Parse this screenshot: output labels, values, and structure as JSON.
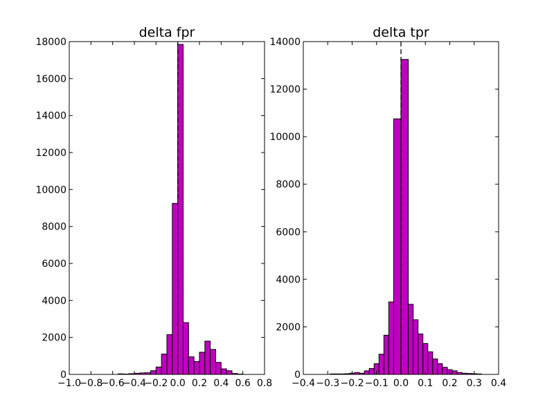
{
  "figure": {
    "background": "#ffffff"
  },
  "chart_data": [
    {
      "type": "bar",
      "title": "delta fpr",
      "xlabel": "",
      "ylabel": "",
      "xlim": [
        -1.0,
        0.8
      ],
      "ylim": [
        0,
        18000
      ],
      "xticks": [
        -1.0,
        -0.8,
        -0.6,
        -0.4,
        -0.2,
        0.0,
        0.2,
        0.4,
        0.6,
        0.8
      ],
      "xtick_labels": [
        "−1.0",
        "−0.8",
        "−0.6",
        "−0.4",
        "−0.2",
        "0.0",
        "0.2",
        "0.4",
        "0.6",
        "0.8"
      ],
      "yticks": [
        0,
        2000,
        4000,
        6000,
        8000,
        10000,
        12000,
        14000,
        16000,
        18000
      ],
      "ytick_labels": [
        "0",
        "2000",
        "4000",
        "6000",
        "8000",
        "10000",
        "12000",
        "14000",
        "16000",
        "18000"
      ],
      "vline": 0.0,
      "bar_color": "#bf00bf",
      "edge_color": "#000000",
      "bins": [
        {
          "x0": -0.55,
          "x1": -0.5,
          "count": 30
        },
        {
          "x0": -0.5,
          "x1": -0.45,
          "count": 20
        },
        {
          "x0": -0.45,
          "x1": -0.4,
          "count": 40
        },
        {
          "x0": -0.4,
          "x1": -0.35,
          "count": 60
        },
        {
          "x0": -0.35,
          "x1": -0.3,
          "count": 80
        },
        {
          "x0": -0.3,
          "x1": -0.25,
          "count": 90
        },
        {
          "x0": -0.25,
          "x1": -0.2,
          "count": 200
        },
        {
          "x0": -0.2,
          "x1": -0.15,
          "count": 400
        },
        {
          "x0": -0.15,
          "x1": -0.1,
          "count": 1100
        },
        {
          "x0": -0.1,
          "x1": -0.05,
          "count": 2150
        },
        {
          "x0": -0.05,
          "x1": 0.0,
          "count": 9250
        },
        {
          "x0": 0.0,
          "x1": 0.05,
          "count": 17850
        },
        {
          "x0": 0.05,
          "x1": 0.1,
          "count": 2800
        },
        {
          "x0": 0.1,
          "x1": 0.15,
          "count": 950
        },
        {
          "x0": 0.15,
          "x1": 0.2,
          "count": 700
        },
        {
          "x0": 0.2,
          "x1": 0.25,
          "count": 1200
        },
        {
          "x0": 0.25,
          "x1": 0.3,
          "count": 1800
        },
        {
          "x0": 0.3,
          "x1": 0.35,
          "count": 1350
        },
        {
          "x0": 0.35,
          "x1": 0.4,
          "count": 650
        },
        {
          "x0": 0.4,
          "x1": 0.45,
          "count": 300
        },
        {
          "x0": 0.45,
          "x1": 0.5,
          "count": 200
        },
        {
          "x0": 0.5,
          "x1": 0.55,
          "count": 50
        },
        {
          "x0": 0.55,
          "x1": 0.6,
          "count": 20
        }
      ]
    },
    {
      "type": "bar",
      "title": "delta tpr",
      "xlabel": "",
      "ylabel": "",
      "xlim": [
        -0.4,
        0.4
      ],
      "ylim": [
        0,
        14000
      ],
      "xticks": [
        -0.4,
        -0.3,
        -0.2,
        -0.1,
        0.0,
        0.1,
        0.2,
        0.3,
        0.4
      ],
      "xtick_labels": [
        "−0.4",
        "−0.3",
        "−0.2",
        "−0.1",
        "0.0",
        "0.1",
        "0.2",
        "0.3",
        "0.4"
      ],
      "yticks": [
        0,
        2000,
        4000,
        6000,
        8000,
        10000,
        12000,
        14000
      ],
      "ytick_labels": [
        "0",
        "2000",
        "4000",
        "6000",
        "8000",
        "10000",
        "12000",
        "14000"
      ],
      "vline": 0.0,
      "bar_color": "#bf00bf",
      "edge_color": "#000000",
      "bins": [
        {
          "x0": -0.29,
          "x1": -0.27,
          "count": 20
        },
        {
          "x0": -0.27,
          "x1": -0.25,
          "count": 20
        },
        {
          "x0": -0.25,
          "x1": -0.23,
          "count": 20
        },
        {
          "x0": -0.23,
          "x1": -0.21,
          "count": 30
        },
        {
          "x0": -0.21,
          "x1": -0.19,
          "count": 50
        },
        {
          "x0": -0.19,
          "x1": -0.17,
          "count": 80
        },
        {
          "x0": -0.17,
          "x1": -0.15,
          "count": 50
        },
        {
          "x0": -0.15,
          "x1": -0.13,
          "count": 150
        },
        {
          "x0": -0.13,
          "x1": -0.11,
          "count": 250
        },
        {
          "x0": -0.11,
          "x1": -0.09,
          "count": 450
        },
        {
          "x0": -0.09,
          "x1": -0.07,
          "count": 850
        },
        {
          "x0": -0.07,
          "x1": -0.05,
          "count": 1650
        },
        {
          "x0": -0.05,
          "x1": -0.03,
          "count": 3050
        },
        {
          "x0": -0.03,
          "x1": 0.0,
          "count": 10750
        },
        {
          "x0": 0.0,
          "x1": 0.03,
          "count": 13250
        },
        {
          "x0": 0.03,
          "x1": 0.05,
          "count": 2950
        },
        {
          "x0": 0.05,
          "x1": 0.07,
          "count": 2300
        },
        {
          "x0": 0.07,
          "x1": 0.09,
          "count": 1700
        },
        {
          "x0": 0.09,
          "x1": 0.11,
          "count": 1300
        },
        {
          "x0": 0.11,
          "x1": 0.13,
          "count": 950
        },
        {
          "x0": 0.13,
          "x1": 0.15,
          "count": 650
        },
        {
          "x0": 0.15,
          "x1": 0.17,
          "count": 450
        },
        {
          "x0": 0.17,
          "x1": 0.19,
          "count": 300
        },
        {
          "x0": 0.19,
          "x1": 0.21,
          "count": 200
        },
        {
          "x0": 0.21,
          "x1": 0.23,
          "count": 150
        },
        {
          "x0": 0.23,
          "x1": 0.25,
          "count": 80
        },
        {
          "x0": 0.25,
          "x1": 0.27,
          "count": 50
        },
        {
          "x0": 0.27,
          "x1": 0.29,
          "count": 40
        },
        {
          "x0": 0.29,
          "x1": 0.31,
          "count": 30
        },
        {
          "x0": 0.31,
          "x1": 0.33,
          "count": 20
        }
      ]
    }
  ]
}
